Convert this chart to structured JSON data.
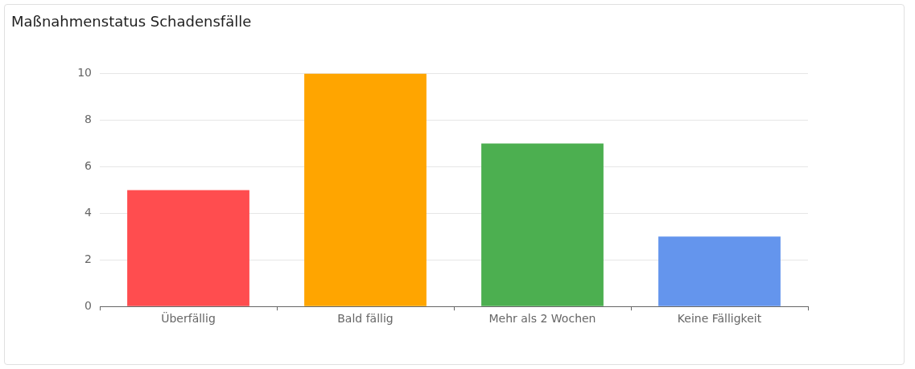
{
  "chart_data": {
    "type": "bar",
    "title": "Maßnahmenstatus Schadensfälle",
    "categories": [
      "Überfällig",
      "Bald fällig",
      "Mehr als 2 Wochen",
      "Keine Fälligkeit"
    ],
    "values": [
      5,
      10,
      7,
      3
    ],
    "colors": [
      "#ff4d4f",
      "#ffa500",
      "#4caf50",
      "#6495ed"
    ],
    "ylim": [
      0,
      10
    ],
    "yticks": [
      0,
      2,
      4,
      6,
      8,
      10
    ],
    "grid": "y",
    "legend": false
  }
}
